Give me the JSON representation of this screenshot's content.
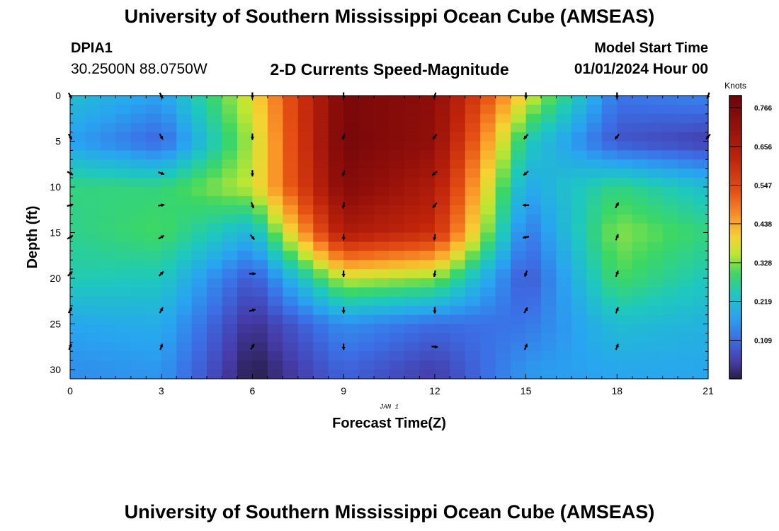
{
  "page_title": "University of Southern Mississippi Ocean Cube (AMSEAS)",
  "footer_title": "University of Southern Mississippi Ocean Cube (AMSEAS)",
  "station": {
    "id": "DPIA1",
    "coords": "30.2500N  88.0750W"
  },
  "subtitle": "2-D Currents Speed-Magnitude",
  "model_start": {
    "label": "Model Start Time",
    "value": "01/01/2024 Hour 00"
  },
  "chart_data": {
    "type": "heatmap",
    "title": "2-D Currents Speed-Magnitude",
    "xlabel": "Forecast Time(Z)",
    "ylabel": "Depth (ft)",
    "date_label": "JAN 1",
    "x_range": [
      0,
      21
    ],
    "y_range": [
      0,
      31
    ],
    "y_inverted": true,
    "x_ticks": [
      0,
      3,
      6,
      9,
      12,
      15,
      18,
      21
    ],
    "y_ticks": [
      0,
      5,
      10,
      15,
      20,
      25,
      30
    ],
    "colorbar": {
      "title": "Knots",
      "ticks": [
        "0.766",
        "0.656",
        "0.547",
        "0.438",
        "0.328",
        "0.219",
        "0.109"
      ],
      "tick_values": [
        0.766,
        0.656,
        0.547,
        0.438,
        0.328,
        0.219,
        0.109
      ],
      "min": 0.0,
      "max": 0.8
    },
    "speed_hours": [
      0,
      3,
      6,
      9,
      12,
      15,
      18,
      21
    ],
    "speed_depths": [
      0,
      5,
      10,
      15,
      20,
      25,
      30
    ],
    "speed_knots": [
      [
        0.22,
        0.17,
        0.38,
        0.77,
        0.73,
        0.38,
        0.12,
        0.14
      ],
      [
        0.17,
        0.1,
        0.35,
        0.78,
        0.72,
        0.25,
        0.08,
        0.05
      ],
      [
        0.28,
        0.28,
        0.36,
        0.75,
        0.66,
        0.18,
        0.28,
        0.22
      ],
      [
        0.27,
        0.3,
        0.2,
        0.66,
        0.6,
        0.12,
        0.33,
        0.28
      ],
      [
        0.25,
        0.24,
        0.08,
        0.36,
        0.33,
        0.08,
        0.3,
        0.24
      ],
      [
        0.18,
        0.19,
        0.03,
        0.15,
        0.11,
        0.12,
        0.22,
        0.2
      ],
      [
        0.15,
        0.16,
        0.0,
        0.1,
        0.05,
        0.16,
        0.18,
        0.18
      ]
    ],
    "arrow_hours": [
      0,
      3,
      6,
      9,
      12,
      15,
      18,
      21
    ],
    "arrow_depths": [
      0,
      4.5,
      8.5,
      12,
      15.5,
      19.5,
      23.5,
      27.5
    ],
    "arrow_directions_deg": [
      [
        150,
        150,
        180,
        180,
        200,
        180,
        180,
        200
      ],
      [
        150,
        150,
        180,
        200,
        220,
        220,
        220,
        220
      ],
      [
        120,
        110,
        180,
        200,
        230,
        230,
        null,
        null
      ],
      [
        75,
        80,
        160,
        190,
        220,
        270,
        30,
        null
      ],
      [
        60,
        60,
        140,
        180,
        190,
        260,
        20,
        null
      ],
      [
        45,
        45,
        90,
        180,
        190,
        200,
        20,
        null
      ],
      [
        30,
        30,
        75,
        180,
        180,
        30,
        20,
        null
      ],
      [
        20,
        20,
        30,
        180,
        95,
        20,
        20,
        null
      ]
    ]
  }
}
